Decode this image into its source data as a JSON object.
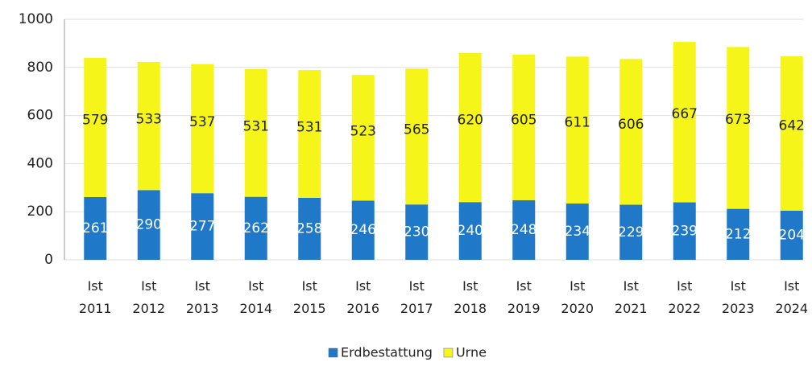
{
  "chart_data": {
    "type": "stacked_bar",
    "categories": [
      "Ist 2011",
      "Ist 2012",
      "Ist 2013",
      "Ist 2014",
      "Ist 2015",
      "Ist 2016",
      "Ist 2017",
      "Ist 2018",
      "Ist 2019",
      "Ist 2020",
      "Ist 2021",
      "Ist 2022",
      "Ist 2023",
      "Ist 2024"
    ],
    "series": [
      {
        "name": "Erdbestattung",
        "color": "#1f78c8",
        "label_color": "#ffffff",
        "values": [
          261,
          290,
          277,
          262,
          258,
          246,
          230,
          240,
          248,
          234,
          229,
          239,
          212,
          204
        ]
      },
      {
        "name": "Urne",
        "color": "#f5f51a",
        "label_color": "#222222",
        "values": [
          579,
          533,
          537,
          531,
          531,
          523,
          565,
          620,
          605,
          611,
          606,
          667,
          673,
          642
        ]
      }
    ],
    "ylim": [
      0,
      1000
    ],
    "yticks": [
      0,
      200,
      400,
      600,
      800,
      1000
    ],
    "grid": true,
    "legend": "bottom"
  }
}
